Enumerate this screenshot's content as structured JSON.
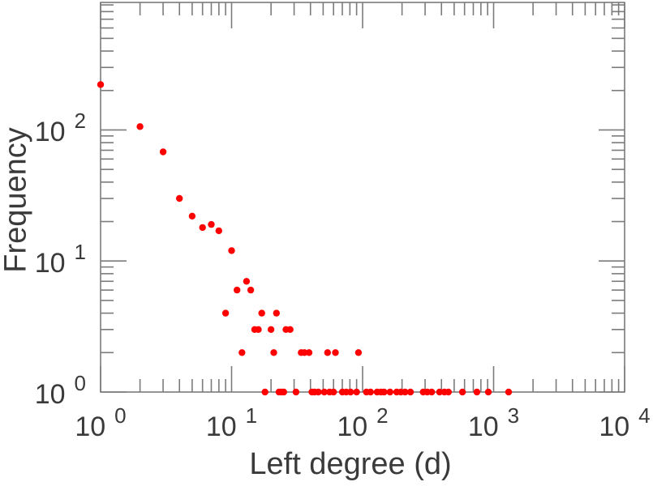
{
  "figure": {
    "background": "#ffffff",
    "axis_color": "#7b7b7b",
    "text_color": "#3a3a3a"
  },
  "chart_data": {
    "type": "scatter",
    "title": "",
    "xlabel": "Left degree (d)",
    "ylabel": "Frequency",
    "x_scale": "log",
    "y_scale": "log",
    "xlim": [
      1,
      10000
    ],
    "ylim": [
      1,
      940
    ],
    "grid": false,
    "legend": null,
    "marker": {
      "shape": "circle",
      "color": "#ff0000",
      "radius": 4.2
    },
    "x_ticks": [
      {
        "value": 1,
        "base": "10",
        "exp": "0"
      },
      {
        "value": 10,
        "base": "10",
        "exp": "1"
      },
      {
        "value": 100,
        "base": "10",
        "exp": "2"
      },
      {
        "value": 1000,
        "base": "10",
        "exp": "3"
      },
      {
        "value": 10000,
        "base": "10",
        "exp": "4"
      }
    ],
    "y_ticks": [
      {
        "value": 1,
        "base": "10",
        "exp": "0"
      },
      {
        "value": 10,
        "base": "10",
        "exp": "1"
      },
      {
        "value": 100,
        "base": "10",
        "exp": "2"
      }
    ],
    "points": [
      [
        1,
        222
      ],
      [
        2,
        106
      ],
      [
        3,
        68
      ],
      [
        4,
        30
      ],
      [
        5,
        22
      ],
      [
        6,
        18
      ],
      [
        7,
        19
      ],
      [
        8,
        17
      ],
      [
        9,
        4
      ],
      [
        10,
        12
      ],
      [
        11,
        6
      ],
      [
        12,
        2
      ],
      [
        13,
        7
      ],
      [
        14,
        6
      ],
      [
        15,
        3
      ],
      [
        16,
        3
      ],
      [
        17,
        4
      ],
      [
        18,
        1
      ],
      [
        20,
        3
      ],
      [
        21,
        2
      ],
      [
        22,
        4
      ],
      [
        23,
        1
      ],
      [
        24,
        1
      ],
      [
        25,
        1
      ],
      [
        26,
        3
      ],
      [
        28,
        3
      ],
      [
        31,
        1
      ],
      [
        34,
        2
      ],
      [
        36,
        2
      ],
      [
        39,
        2
      ],
      [
        41,
        1
      ],
      [
        43,
        1
      ],
      [
        46,
        1
      ],
      [
        51,
        1
      ],
      [
        54,
        2
      ],
      [
        56,
        1
      ],
      [
        60,
        1
      ],
      [
        62,
        2
      ],
      [
        70,
        1
      ],
      [
        75,
        1
      ],
      [
        81,
        1
      ],
      [
        90,
        1
      ],
      [
        93,
        2
      ],
      [
        107,
        1
      ],
      [
        115,
        1
      ],
      [
        129,
        1
      ],
      [
        138,
        1
      ],
      [
        146,
        1
      ],
      [
        162,
        1
      ],
      [
        182,
        1
      ],
      [
        196,
        1
      ],
      [
        211,
        1
      ],
      [
        232,
        1
      ],
      [
        290,
        1
      ],
      [
        312,
        1
      ],
      [
        337,
        1
      ],
      [
        387,
        1
      ],
      [
        421,
        1
      ],
      [
        452,
        1
      ],
      [
        578,
        1
      ],
      [
        746,
        1
      ],
      [
        912,
        1
      ],
      [
        1301,
        1
      ]
    ]
  }
}
